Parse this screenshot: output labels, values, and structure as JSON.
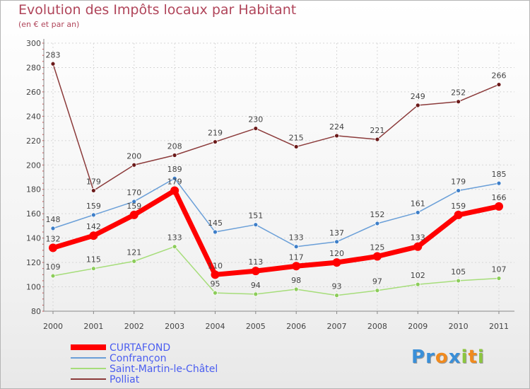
{
  "chart_data": {
    "type": "line",
    "title": "Evolution des Impôts locaux par Habitant",
    "subtitle": "(en € et par an)",
    "xlabel": "",
    "ylabel": "",
    "ylim": [
      80,
      300
    ],
    "yticks": [
      80,
      100,
      120,
      140,
      160,
      180,
      200,
      220,
      240,
      260,
      280,
      300
    ],
    "grid": true,
    "legend_position": "bottom-left",
    "categories": [
      "2000",
      "2001",
      "2002",
      "2003",
      "2004",
      "2005",
      "2006",
      "2007",
      "2008",
      "2009",
      "2010",
      "2011"
    ],
    "series": [
      {
        "name": "Polliat",
        "color": "#8b3a3a",
        "marker": "#6b1a1a",
        "width": 1.5,
        "dot": 3,
        "values": [
          283,
          179,
          200,
          208,
          219,
          230,
          215,
          224,
          221,
          249,
          252,
          266
        ]
      },
      {
        "name": "Confrançon",
        "color": "#6a9fd8",
        "marker": "#3d7ec8",
        "width": 1.5,
        "dot": 3,
        "values": [
          148,
          159,
          170,
          189,
          145,
          151,
          133,
          137,
          152,
          161,
          179,
          185
        ]
      },
      {
        "name": "Saint-Martin-le-Châtel",
        "color": "#a6dd7a",
        "marker": "#8ccc5a",
        "width": 1.5,
        "dot": 3,
        "values": [
          109,
          115,
          121,
          133,
          95,
          94,
          98,
          93,
          97,
          102,
          105,
          107
        ]
      },
      {
        "name": "CURTAFOND",
        "color": "#ff0000",
        "marker": "#ff0000",
        "width": 7,
        "dot": 6,
        "values": [
          132,
          142,
          159,
          179,
          110,
          113,
          117,
          120,
          125,
          133,
          159,
          166
        ]
      }
    ]
  },
  "legend": {
    "items": [
      {
        "label": "CURTAFOND",
        "color": "#ff0000",
        "thickness": 8
      },
      {
        "label": "Confrançon",
        "color": "#6a9fd8",
        "thickness": 2
      },
      {
        "label": "Saint-Martin-le-Châtel",
        "color": "#a6dd7a",
        "thickness": 2
      },
      {
        "label": "Polliat",
        "color": "#8b3a3a",
        "thickness": 2
      }
    ]
  },
  "logo": {
    "letters": [
      {
        "ch": "P",
        "color": "#3a8fd8"
      },
      {
        "ch": "r",
        "color": "#3a8fd8"
      },
      {
        "ch": "o",
        "color": "#f08a1e"
      },
      {
        "ch": "x",
        "color": "#3a8fd8"
      },
      {
        "ch": "i",
        "color": "#8cc63f"
      },
      {
        "ch": "t",
        "color": "#f08a1e"
      },
      {
        "ch": "i",
        "color": "#8cc63f"
      }
    ]
  }
}
